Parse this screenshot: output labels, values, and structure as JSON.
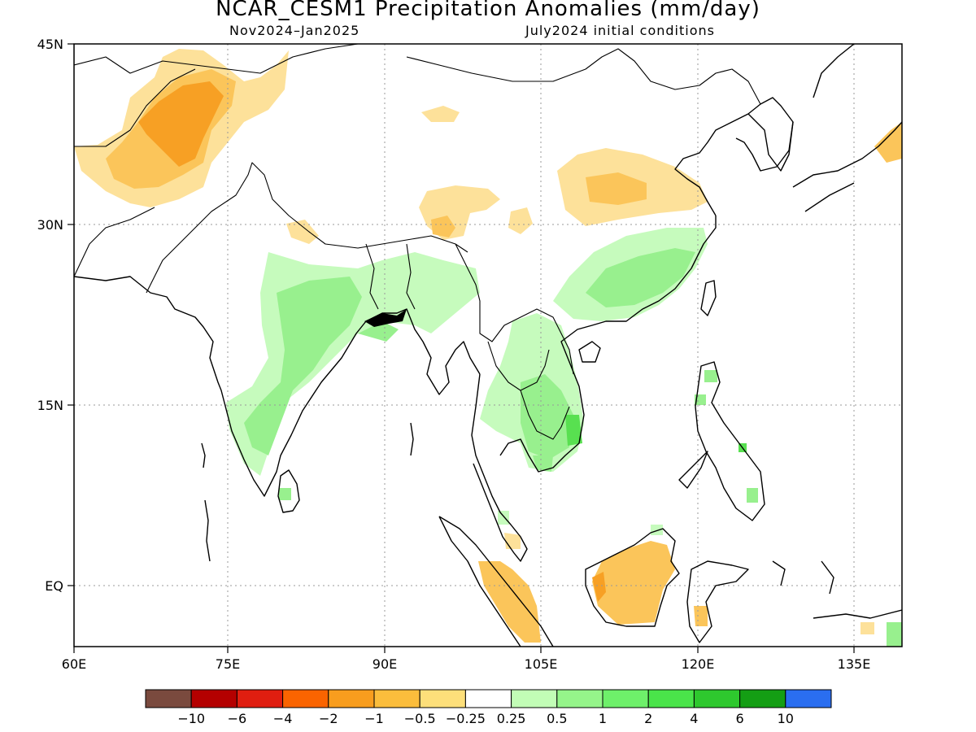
{
  "title": "NCAR_CESM1 Precipitation Anomalies (mm/day)",
  "period": "Nov2024–Jan2025",
  "initial_conditions": "July2024 initial conditions",
  "axes": {
    "x_ticks": [
      "60E",
      "75E",
      "90E",
      "105E",
      "120E",
      "135E"
    ],
    "y_ticks": [
      "45N",
      "30N",
      "15N",
      "EQ"
    ],
    "lon_range": [
      60,
      140
    ],
    "lat_range": [
      -5,
      45
    ],
    "grid": true
  },
  "colorbar": {
    "colors": [
      "#7a4a3e",
      "#b40000",
      "#e01e10",
      "#fa6400",
      "#f89d1e",
      "#fbbd3c",
      "#fddf7a",
      "#ffffff",
      "#c2fdb6",
      "#95f58a",
      "#6ef06a",
      "#4ae44a",
      "#2ec82e",
      "#149e14",
      "#2a6ef0"
    ],
    "labels": [
      "−10",
      "−6",
      "−4",
      "−2",
      "−1",
      "−0.5",
      "−0.25",
      "0.25",
      "0.5",
      "1",
      "2",
      "4",
      "6",
      "10"
    ]
  },
  "anomaly_colors": {
    "dry_weak": "#fde19a",
    "dry_mod": "#fbc55a",
    "dry_strong": "#f7a024",
    "wet_weak": "#c6fbbd",
    "wet_mod": "#98f08e",
    "wet_strong": "#58e050"
  }
}
